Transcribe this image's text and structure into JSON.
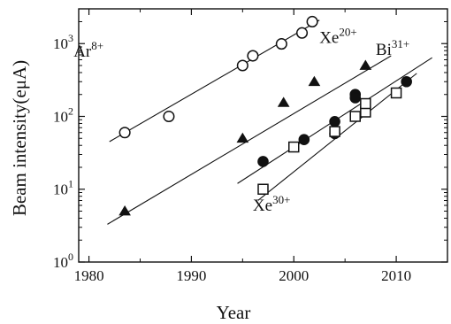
{
  "chart_data": {
    "type": "scatter",
    "y_scale": "log",
    "xlabel": "Year",
    "ylabel": "Beam intensity(eμA)",
    "xlim": [
      1979,
      2015
    ],
    "ylim": [
      1,
      3000
    ],
    "x_ticks": [
      1980,
      1990,
      2000,
      2010
    ],
    "y_ticks": [
      {
        "value": 1,
        "base": "10",
        "exp": "0"
      },
      {
        "value": 10,
        "base": "10",
        "exp": "1"
      },
      {
        "value": 100,
        "base": "10",
        "exp": "2"
      },
      {
        "value": 1000,
        "base": "10",
        "exp": "3"
      }
    ],
    "grid": false,
    "series": [
      {
        "name": "Ar8+",
        "label_base": "Ar",
        "label_sup": "8+",
        "marker": "circle-open",
        "points": [
          [
            1983.5,
            60
          ],
          [
            1987.8,
            100
          ],
          [
            1995,
            500
          ],
          [
            1996,
            680
          ],
          [
            1998.8,
            990
          ],
          [
            2000.8,
            1400
          ],
          [
            2001.8,
            2000
          ]
        ],
        "fit": [
          [
            1982,
            45
          ],
          [
            2002.5,
            2100
          ]
        ]
      },
      {
        "name": "Xe20+",
        "label_base": "Xe",
        "label_sup": "20+",
        "marker": "triangle-filled",
        "points": [
          [
            1983.5,
            5
          ],
          [
            1995,
            50
          ],
          [
            1999,
            155
          ],
          [
            2002,
            300
          ],
          [
            2007,
            500
          ]
        ],
        "fit": [
          [
            1981.8,
            3.3
          ],
          [
            2009.5,
            680
          ]
        ]
      },
      {
        "name": "Bi31+",
        "label_base": "Bi",
        "label_sup": "31+",
        "marker": "circle-filled",
        "points": [
          [
            1997,
            24
          ],
          [
            2001,
            48
          ],
          [
            2004,
            85
          ],
          [
            2004,
            58
          ],
          [
            2006,
            200
          ],
          [
            2006,
            180
          ],
          [
            2011,
            300
          ]
        ],
        "fit": [
          [
            1994.5,
            12
          ],
          [
            2013.5,
            640
          ]
        ]
      },
      {
        "name": "Xe30+",
        "label_base": "Xe",
        "label_sup": "30+",
        "marker": "square-open",
        "points": [
          [
            1997,
            10
          ],
          [
            2000,
            38
          ],
          [
            2004,
            62
          ],
          [
            2006,
            100
          ],
          [
            2007,
            115
          ],
          [
            2007,
            150
          ],
          [
            2010,
            210
          ]
        ],
        "fit": [
          [
            1996.5,
            7
          ],
          [
            2012,
            390
          ]
        ]
      }
    ]
  }
}
